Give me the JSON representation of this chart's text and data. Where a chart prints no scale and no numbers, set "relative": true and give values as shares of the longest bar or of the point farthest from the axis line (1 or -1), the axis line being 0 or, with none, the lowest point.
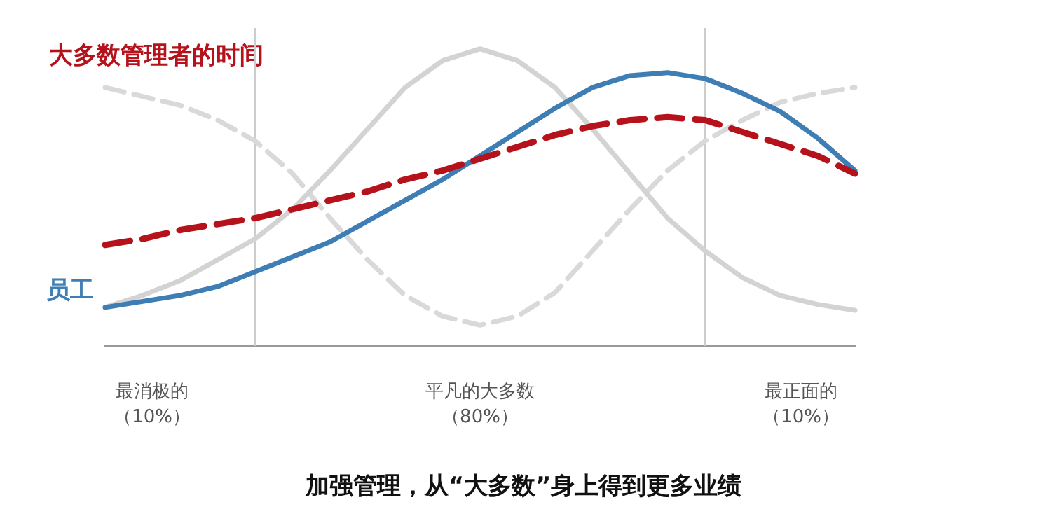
{
  "chart_data": {
    "type": "line",
    "title": "加强管理，从“大多数”身上得到更多业绩",
    "relative": true,
    "marker": "none",
    "categories": [
      null,
      null,
      null,
      null,
      null,
      null,
      null,
      null,
      null,
      null,
      null,
      null,
      null,
      null,
      null,
      null,
      null,
      null,
      null,
      null,
      null
    ],
    "series": [
      {
        "name": "大多数管理者的时间",
        "color": "#b5121b",
        "line_style": "dashed",
        "values": [
          0.34,
          0.36,
          0.39,
          0.41,
          0.43,
          0.46,
          0.49,
          0.52,
          0.56,
          0.59,
          0.63,
          0.67,
          0.71,
          0.74,
          0.76,
          0.77,
          0.76,
          0.72,
          0.68,
          0.64,
          0.58
        ]
      },
      {
        "name": "员工",
        "color": "#3f7db5",
        "line_style": "solid",
        "values": [
          0.13,
          0.15,
          0.17,
          0.2,
          0.25,
          0.3,
          0.35,
          0.42,
          0.49,
          0.56,
          0.64,
          0.72,
          0.8,
          0.87,
          0.91,
          0.92,
          0.9,
          0.85,
          0.79,
          0.7,
          0.59
        ]
      },
      {
        "color": "#d3d3d3",
        "line_style": "solid",
        "values": [
          0.13,
          0.17,
          0.22,
          0.29,
          0.36,
          0.46,
          0.59,
          0.73,
          0.87,
          0.96,
          1.0,
          0.96,
          0.87,
          0.73,
          0.58,
          0.43,
          0.32,
          0.23,
          0.17,
          0.14,
          0.12
        ]
      },
      {
        "color": "#d9d9d9",
        "line_style": "dashed",
        "values": [
          0.87,
          0.84,
          0.81,
          0.76,
          0.69,
          0.58,
          0.43,
          0.29,
          0.17,
          0.1,
          0.07,
          0.1,
          0.18,
          0.32,
          0.46,
          0.59,
          0.69,
          0.76,
          0.82,
          0.85,
          0.87
        ]
      }
    ],
    "annotations": [
      "最消极的",
      "（10%）",
      "平凡的大多数",
      "（80%）",
      "最正面的",
      "（10%）"
    ]
  }
}
